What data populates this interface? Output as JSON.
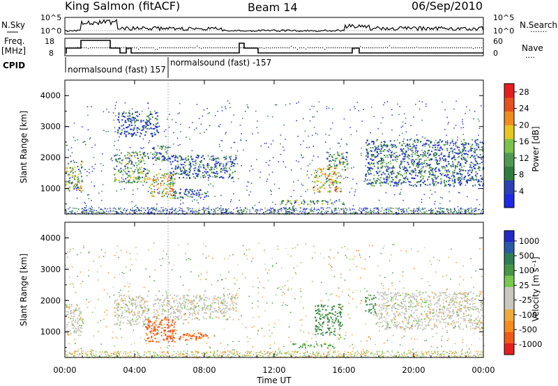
{
  "header": {
    "site": "King Salmon (fitACF)",
    "beam": "Beam 14",
    "date": "06/Sep/2010"
  },
  "top_panels": {
    "nsky_label": "N.Sky",
    "nsky_ticks": [
      "10^5",
      "10^0"
    ],
    "nsearch_label": "N.Search",
    "nsearch_ticks": [
      "10^5",
      "10^0"
    ],
    "freq_label_1": "Freq.",
    "freq_label_2": "[MHz]",
    "freq_ticks": [
      "18",
      "8"
    ],
    "nave_label": "Nave",
    "nave_ticks": [
      "60",
      "0"
    ],
    "cpid_label": "CPID",
    "cpid_segments": [
      "normalsound (fast) 157",
      "normalsound (fast) -157"
    ]
  },
  "colors": {
    "power": [
      "#1e28e6",
      "#2a40b4",
      "#2e7d3e",
      "#4f9a52",
      "#7cc24a",
      "#e6c81e",
      "#f08c1e",
      "#e8501e",
      "#e61e1e"
    ],
    "velocity": [
      "#e61e1e",
      "#f05a14",
      "#f58c1e",
      "#f0aa3c",
      "#c8c8be",
      "#c8c8be",
      "#78c84b",
      "#469646",
      "#2d7d55",
      "#2a5aaa",
      "#2328c8"
    ],
    "ground_scatter": "#c8c8be"
  },
  "chart_data": [
    {
      "type": "heatmap",
      "title": "",
      "xlabel": "Time UT",
      "ylabel": "Slant Range [km]",
      "x_ticks": [
        "00:00",
        "04:00",
        "08:00",
        "12:00",
        "16:00",
        "20:00",
        "00:00"
      ],
      "x_range_hours": [
        0,
        24
      ],
      "y_ticks": [
        1000,
        2000,
        3000,
        4000
      ],
      "ylim": [
        180,
        4500
      ],
      "colorbar_label": "Power [dB]",
      "colorbar_ticks": [
        4,
        8,
        12,
        16,
        20,
        24,
        28
      ],
      "colorbar_range": [
        0,
        30
      ],
      "regions": [
        {
          "t": [
            0.0,
            1.0
          ],
          "r": [
            950,
            1900
          ],
          "v": 14
        },
        {
          "t": [
            2.8,
            4.8
          ],
          "r": [
            1200,
            2200
          ],
          "v": 12
        },
        {
          "t": [
            4.8,
            6.3
          ],
          "r": [
            700,
            1500
          ],
          "v": 18
        },
        {
          "t": [
            5.0,
            6.0
          ],
          "r": [
            1900,
            2400
          ],
          "v": 8
        },
        {
          "t": [
            6.0,
            9.8
          ],
          "r": [
            1350,
            2100
          ],
          "v": 6
        },
        {
          "t": [
            6.2,
            8.2
          ],
          "r": [
            700,
            1000
          ],
          "v": 6
        },
        {
          "t": [
            3.0,
            5.4
          ],
          "r": [
            2700,
            3500
          ],
          "v": 4
        },
        {
          "t": [
            14.2,
            15.8
          ],
          "r": [
            900,
            1700
          ],
          "v": 18
        },
        {
          "t": [
            15.0,
            16.2
          ],
          "r": [
            1600,
            2200
          ],
          "v": 10
        },
        {
          "t": [
            17.2,
            24.0
          ],
          "r": [
            1100,
            2600
          ],
          "v": 7
        },
        {
          "t": [
            12.0,
            16.0
          ],
          "r": [
            500,
            650
          ],
          "v": 10
        }
      ]
    },
    {
      "type": "heatmap",
      "title": "",
      "xlabel": "Time UT",
      "ylabel": "Slant Range [km]",
      "x_ticks": [
        "00:00",
        "04:00",
        "08:00",
        "12:00",
        "16:00",
        "20:00",
        "00:00"
      ],
      "x_range_hours": [
        0,
        24
      ],
      "y_ticks": [
        1000,
        2000,
        3000,
        4000
      ],
      "ylim": [
        180,
        4500
      ],
      "colorbar_label": "Velocity [m s⁻¹]",
      "colorbar_ticks": [
        "1000",
        "500",
        "100",
        "25",
        "-25",
        "-100",
        "-500",
        "-1000"
      ],
      "colorbar_range": [
        -1000,
        1000
      ],
      "regions": [
        {
          "t": [
            0.0,
            1.0
          ],
          "r": [
            900,
            1900
          ],
          "v": 0
        },
        {
          "t": [
            2.8,
            4.8
          ],
          "r": [
            1200,
            2200
          ],
          "v": 0
        },
        {
          "t": [
            4.6,
            6.3
          ],
          "r": [
            700,
            1500
          ],
          "v": -450
        },
        {
          "t": [
            6.0,
            8.2
          ],
          "r": [
            750,
            1000
          ],
          "v": -350
        },
        {
          "t": [
            5.0,
            9.8
          ],
          "r": [
            1400,
            2200
          ],
          "v": 0
        },
        {
          "t": [
            14.3,
            15.9
          ],
          "r": [
            900,
            1900
          ],
          "v": 250
        },
        {
          "t": [
            15.6,
            16.0
          ],
          "r": [
            780,
            850
          ],
          "v": 100
        },
        {
          "t": [
            17.2,
            17.8
          ],
          "r": [
            1600,
            2200
          ],
          "v": 250
        },
        {
          "t": [
            17.8,
            24.0
          ],
          "r": [
            1100,
            2300
          ],
          "v": 0
        },
        {
          "t": [
            13.0,
            15.5
          ],
          "r": [
            500,
            650
          ],
          "v": 100
        }
      ]
    }
  ]
}
